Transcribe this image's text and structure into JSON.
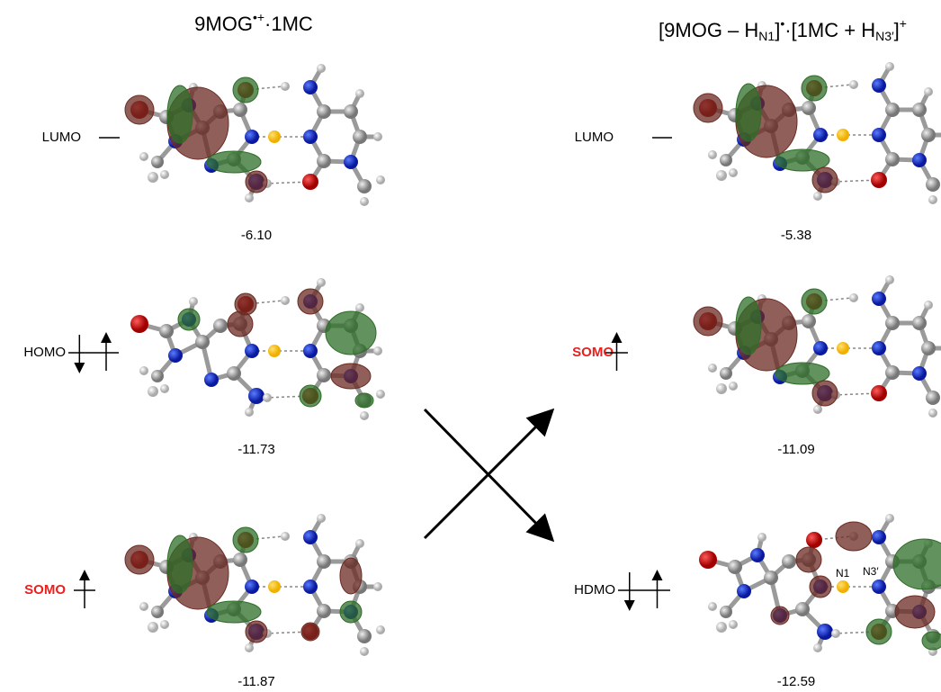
{
  "columns": [
    {
      "title": [
        {
          "text": "9MOG"
        },
        {
          "sup": "•+"
        },
        {
          "text": "·1MC"
        }
      ],
      "levels": [
        {
          "label": "LUMO",
          "color": "#000000",
          "electrons": 0,
          "energy": "-6.10"
        },
        {
          "label": "HOMO",
          "color": "#000000",
          "electrons": 2,
          "energy": "-11.73"
        },
        {
          "label": "SOMO",
          "color": "#e8201e",
          "electrons": 1,
          "energy": "-11.87"
        }
      ]
    },
    {
      "title": [
        {
          "text": "[9MOG – H"
        },
        {
          "sub": "N1"
        },
        {
          "text": "]"
        },
        {
          "sup": "•"
        },
        {
          "text": "·[1MC + H"
        },
        {
          "sub": "N3′"
        },
        {
          "text": "]"
        },
        {
          "sup": "+"
        }
      ],
      "levels": [
        {
          "label": "LUMO",
          "color": "#000000",
          "electrons": 0,
          "energy": "-5.38"
        },
        {
          "label": "SOMO",
          "color": "#e8201e",
          "electrons": 1,
          "energy": "-11.09"
        },
        {
          "label": "HDMO",
          "color": "#000000",
          "electrons": 2,
          "energy": "-12.59",
          "atom_labels": [
            "N1",
            "N3′"
          ]
        }
      ]
    }
  ]
}
